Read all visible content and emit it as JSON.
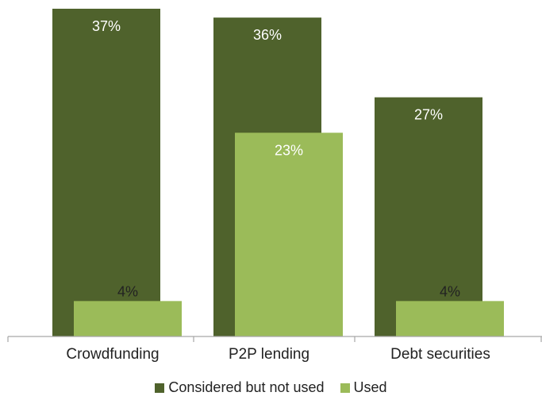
{
  "chart_data": {
    "type": "bar",
    "categories": [
      "Crowdfunding",
      "P2P lending",
      "Debt securities"
    ],
    "series": [
      {
        "name": "Considered but not used",
        "values": [
          37,
          36,
          27
        ],
        "labels": [
          "37%",
          "36%",
          "27%"
        ],
        "color": "#4f622c"
      },
      {
        "name": "Used",
        "values": [
          4,
          23,
          4
        ],
        "labels": [
          "4%",
          "23%",
          "4%"
        ],
        "color": "#9bbb59"
      }
    ],
    "ylim": [
      0,
      37
    ],
    "grid": false,
    "legend_position": "bottom",
    "title": "",
    "xlabel": "",
    "ylabel": ""
  }
}
